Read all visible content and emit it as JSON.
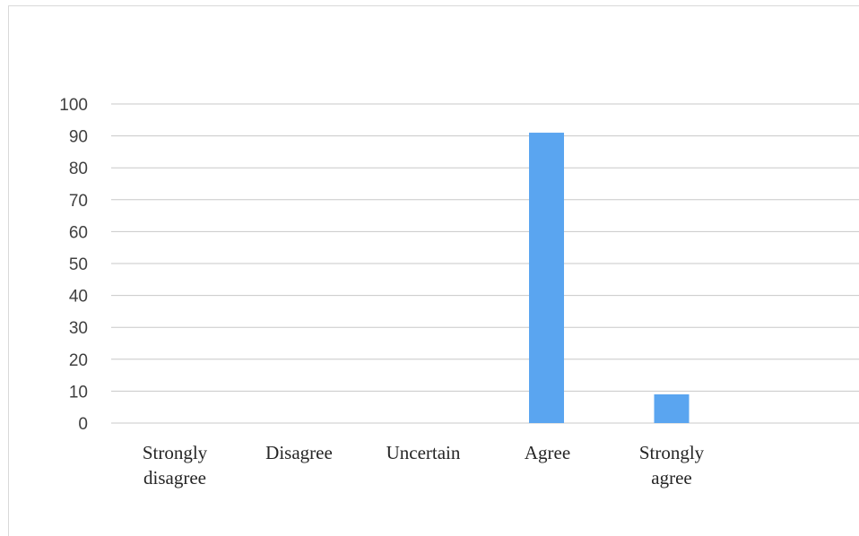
{
  "colors": {
    "bar": "#5aa5f0",
    "grid": "#c8c8c8",
    "axis_text": "#404040",
    "category_text": "#262626"
  },
  "chart_data": {
    "type": "bar",
    "categories": [
      [
        "Strongly",
        "disagree"
      ],
      [
        "Disagree"
      ],
      [
        "Uncertain"
      ],
      [
        "Agree"
      ],
      [
        "Strongly",
        "agree"
      ]
    ],
    "values": [
      0,
      0,
      0,
      91,
      9
    ],
    "title": "",
    "xlabel": "",
    "ylabel": "",
    "ylim": [
      0,
      100
    ],
    "yticks": [
      0,
      10,
      20,
      30,
      40,
      50,
      60,
      70,
      80,
      90,
      100
    ],
    "grid": true,
    "legend": "none"
  }
}
